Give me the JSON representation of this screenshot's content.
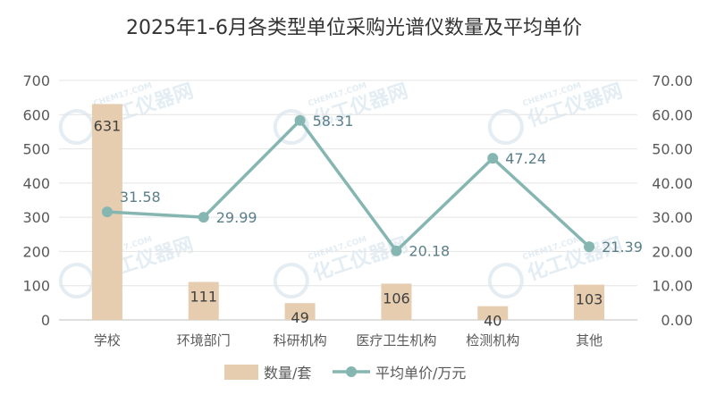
{
  "chart_data": {
    "type": "bar",
    "title": "2025年1-6月各类型单位采购光谱仪数量及平均单价",
    "categories": [
      "学校",
      "环境部门",
      "科研机构",
      "医疗卫生机构",
      "检测机构",
      "其他"
    ],
    "series": [
      {
        "name": "数量/套",
        "type": "bar",
        "axis": "left",
        "values": [
          631,
          111,
          49,
          106,
          40,
          103
        ],
        "color": "#e6cdb0"
      },
      {
        "name": "平均单价/万元",
        "type": "line",
        "axis": "right",
        "values": [
          31.58,
          29.99,
          58.31,
          20.18,
          47.24,
          21.39
        ],
        "color": "#86b6b1"
      }
    ],
    "y_left": {
      "ylim": [
        0,
        700
      ],
      "ticks": [
        "0",
        "100",
        "200",
        "300",
        "400",
        "500",
        "600",
        "700"
      ]
    },
    "y_right": {
      "ylim": [
        0,
        70
      ],
      "ticks": [
        "0.00",
        "10.00",
        "20.00",
        "30.00",
        "40.00",
        "50.00",
        "60.00",
        "70.00"
      ]
    },
    "bar_labels": [
      "631",
      "111",
      "49",
      "106",
      "40",
      "103"
    ],
    "line_labels": [
      "31.58",
      "29.99",
      "58.31",
      "20.18",
      "47.24",
      "21.39"
    ],
    "grid": true,
    "legend_position": "bottom-center"
  },
  "watermark": {
    "text": "化工仪器网",
    "sub": "CHEM17.COM"
  }
}
